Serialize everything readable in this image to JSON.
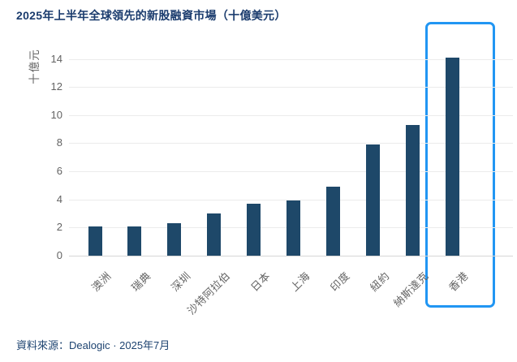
{
  "chart_data": {
    "type": "bar",
    "title": "2025年上半年全球領先的新股融資市場（十億美元）",
    "ylabel": "十億元",
    "categories": [
      "澳洲",
      "瑞典",
      "深圳",
      "沙特阿拉伯",
      "日本",
      "上海",
      "印度",
      "紐約",
      "納斯達克",
      "香港"
    ],
    "values": [
      2.1,
      2.1,
      2.3,
      3.0,
      3.7,
      3.9,
      4.9,
      7.9,
      9.3,
      14.1
    ],
    "yticks": [
      0,
      2,
      4,
      6,
      8,
      10,
      12,
      14
    ],
    "ylim": [
      0,
      15
    ],
    "grid": true,
    "legend_position": "none",
    "bar_color": "#1E4869",
    "title_color": "#1B3C6E",
    "source_color": "#1D4370",
    "axis_text_color": "#636363",
    "gridline_color": "#EBEBEB",
    "baseline_color": "#D6D6D6",
    "highlight": {
      "category": "香港",
      "box_color": "#2196F3"
    },
    "source": "資料來源：Dealogic · 2025年7月"
  }
}
